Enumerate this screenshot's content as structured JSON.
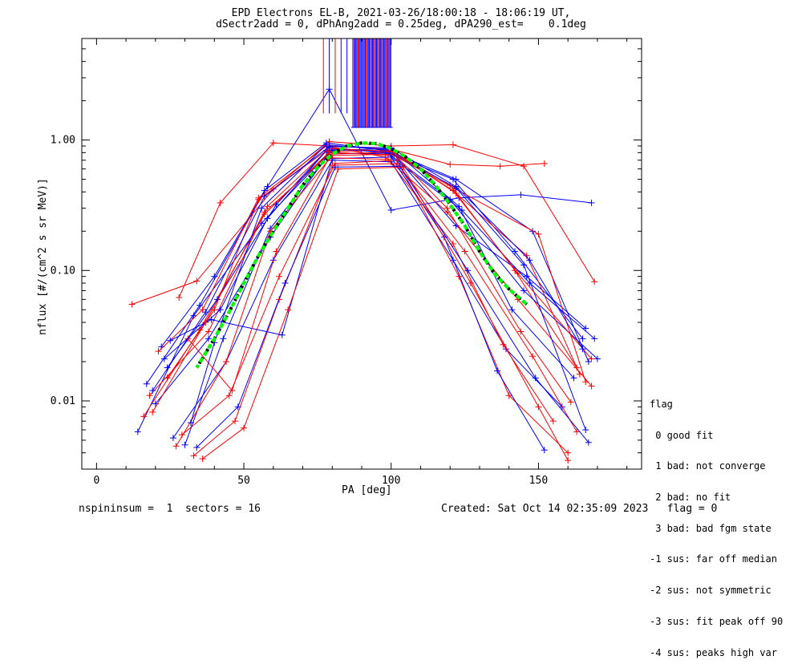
{
  "header": {
    "title_line1": "EPD Electrons EL-B, 2021-03-26/18:00:18 - 18:06:19 UT,",
    "title_line2": "dSectr2add = 0, dPhAng2add = 0.25deg, dPA290_est=    0.1deg"
  },
  "footer": {
    "left": "nspininsum =  1  sectors = 16",
    "right": "Created: Sat Oct 14 02:35:09 2023   flag = 0"
  },
  "legend": {
    "title": "flag",
    "items": [
      " 0 good fit",
      " 1 bad: not converge",
      " 2 bad: no fit",
      " 3 bad: bad fgm state",
      "-1 sus: far off median",
      "-2 sus: not symmetric",
      "-3 sus: fit peak off 90",
      "-4 sus: peaks high var"
    ]
  },
  "colors": {
    "series_blue": "#0000ff",
    "series_red": "#ff0000",
    "fit_green": "#00ff00",
    "fit_black": "#000000"
  },
  "chart_data": {
    "type": "line",
    "xlabel": "PA [deg]",
    "ylabel": "nflux [#/(cm^2 s sr MeV)]",
    "xlim": [
      -5,
      185
    ],
    "ylim": [
      0.003,
      6.0
    ],
    "ylog": true,
    "xticks": [
      0,
      50,
      100,
      150
    ],
    "yticks": [
      0.01,
      0.1,
      1.0
    ],
    "ytick_labels": [
      "0.01",
      "0.10",
      "1.00"
    ],
    "spike_region_x": [
      87,
      100
    ],
    "series": [
      {
        "color": "red",
        "x": [
          12,
          34,
          60,
          79,
          100,
          121,
          145,
          169
        ],
        "y": [
          0.055,
          0.083,
          0.42,
          0.97,
          0.9,
          0.92,
          0.63,
          0.082
        ]
      },
      {
        "color": "red",
        "x": [
          28,
          42,
          60,
          79,
          100,
          120,
          137,
          152
        ],
        "y": [
          0.062,
          0.33,
          0.95,
          0.9,
          0.85,
          0.65,
          0.63,
          0.66
        ]
      },
      {
        "color": "blue",
        "x": [
          17,
          35,
          58,
          79,
          100,
          123,
          144,
          168
        ],
        "y": [
          0.0135,
          0.054,
          0.44,
          2.45,
          0.29,
          0.36,
          0.38,
          0.33
        ]
      },
      {
        "color": "blue",
        "x": [
          22,
          40,
          57,
          78,
          100,
          122,
          146,
          166
        ],
        "y": [
          0.026,
          0.09,
          0.41,
          0.95,
          0.82,
          0.22,
          0.09,
          0.036
        ]
      },
      {
        "color": "blue",
        "x": [
          20,
          38,
          59,
          79,
          100,
          121,
          142,
          165
        ],
        "y": [
          0.0095,
          0.03,
          0.18,
          0.8,
          0.78,
          0.5,
          0.14,
          0.03
        ]
      },
      {
        "color": "red",
        "x": [
          19,
          37,
          58,
          78,
          100,
          120,
          142,
          163
        ],
        "y": [
          0.0082,
          0.04,
          0.31,
          0.82,
          0.83,
          0.45,
          0.1,
          0.018
        ]
      },
      {
        "color": "blue",
        "x": [
          14,
          33,
          56,
          80,
          100,
          122,
          148,
          167
        ],
        "y": [
          0.0058,
          0.045,
          0.23,
          0.85,
          0.81,
          0.5,
          0.2,
          0.02
        ]
      },
      {
        "color": "red",
        "x": [
          16,
          35,
          57,
          79,
          101,
          122,
          150,
          166
        ],
        "y": [
          0.0076,
          0.035,
          0.27,
          0.81,
          0.76,
          0.42,
          0.19,
          0.014
        ]
      },
      {
        "color": "blue",
        "x": [
          24,
          41,
          61,
          79,
          99,
          120,
          145,
          170
        ],
        "y": [
          0.018,
          0.06,
          0.32,
          0.88,
          0.79,
          0.35,
          0.07,
          0.021
        ]
      },
      {
        "color": "red",
        "x": [
          21,
          36,
          55,
          78,
          98,
          119,
          143,
          168
        ],
        "y": [
          0.024,
          0.05,
          0.36,
          0.9,
          0.74,
          0.28,
          0.06,
          0.013
        ]
      },
      {
        "color": "blue",
        "x": [
          26,
          44,
          60,
          80,
          100,
          121,
          139,
          158
        ],
        "y": [
          0.0052,
          0.02,
          0.12,
          0.7,
          0.68,
          0.12,
          0.025,
          0.009
        ]
      },
      {
        "color": "red",
        "x": [
          29,
          45,
          62,
          81,
          102,
          123,
          140,
          160
        ],
        "y": [
          0.0055,
          0.011,
          0.09,
          0.66,
          0.7,
          0.09,
          0.011,
          0.004
        ]
      },
      {
        "color": "blue",
        "x": [
          30,
          43,
          59,
          79,
          99,
          118,
          136,
          152
        ],
        "y": [
          0.0046,
          0.03,
          0.21,
          0.78,
          0.8,
          0.18,
          0.017,
          0.0042
        ]
      },
      {
        "color": "red",
        "x": [
          18,
          38,
          57,
          79,
          101,
          122,
          146,
          164
        ],
        "y": [
          0.011,
          0.034,
          0.28,
          0.78,
          0.81,
          0.39,
          0.13,
          0.016
        ]
      },
      {
        "color": "blue",
        "x": [
          25,
          39,
          63,
          80,
          100,
          124,
          147,
          169
        ],
        "y": [
          0.029,
          0.042,
          0.032,
          0.72,
          0.74,
          0.29,
          0.08,
          0.03
        ]
      },
      {
        "color": "red",
        "x": [
          31,
          46,
          61,
          79,
          99,
          121,
          138,
          155
        ],
        "y": [
          0.03,
          0.012,
          0.14,
          0.73,
          0.71,
          0.16,
          0.027,
          0.007
        ]
      },
      {
        "color": "blue",
        "x": [
          23,
          42,
          58,
          78,
          100,
          123,
          141,
          162
        ],
        "y": [
          0.021,
          0.05,
          0.25,
          0.83,
          0.86,
          0.31,
          0.05,
          0.015
        ]
      },
      {
        "color": "red",
        "x": [
          27,
          44,
          59,
          80,
          101,
          119,
          144,
          161
        ],
        "y": [
          0.0045,
          0.02,
          0.2,
          0.76,
          0.78,
          0.3,
          0.034,
          0.0098
        ]
      },
      {
        "color": "blue",
        "x": [
          32,
          40,
          56,
          78,
          98,
          122,
          145,
          166
        ],
        "y": [
          0.0068,
          0.028,
          0.3,
          0.92,
          0.84,
          0.43,
          0.11,
          0.006
        ]
      },
      {
        "color": "red",
        "x": [
          33,
          47,
          62,
          80,
          102,
          125,
          148,
          163
        ],
        "y": [
          0.0038,
          0.007,
          0.06,
          0.64,
          0.66,
          0.14,
          0.022,
          0.0058
        ]
      },
      {
        "color": "blue",
        "x": [
          34,
          48,
          64,
          81,
          103,
          126,
          149,
          167
        ],
        "y": [
          0.0044,
          0.009,
          0.08,
          0.62,
          0.63,
          0.1,
          0.015,
          0.0048
        ]
      },
      {
        "color": "red",
        "x": [
          24,
          40,
          55,
          79,
          100,
          121,
          143,
          168
        ],
        "y": [
          0.015,
          0.05,
          0.35,
          0.86,
          0.82,
          0.41,
          0.095,
          0.021
        ]
      },
      {
        "color": "blue",
        "x": [
          19,
          37,
          57,
          79,
          100,
          122,
          147,
          165
        ],
        "y": [
          0.012,
          0.048,
          0.37,
          0.89,
          0.87,
          0.44,
          0.12,
          0.025
        ]
      },
      {
        "color": "red",
        "x": [
          36,
          50,
          65,
          82,
          104,
          127,
          150,
          160
        ],
        "y": [
          0.0036,
          0.0062,
          0.05,
          0.6,
          0.62,
          0.08,
          0.009,
          0.0035
        ]
      }
    ],
    "fit_curve": {
      "x": [
        34,
        40,
        45,
        50,
        55,
        60,
        65,
        70,
        75,
        80,
        85,
        90,
        95,
        100,
        105,
        110,
        115,
        120,
        125,
        130,
        135,
        140,
        146
      ],
      "y": [
        0.018,
        0.03,
        0.048,
        0.08,
        0.13,
        0.2,
        0.3,
        0.45,
        0.62,
        0.78,
        0.9,
        0.95,
        0.94,
        0.86,
        0.74,
        0.6,
        0.45,
        0.32,
        0.22,
        0.14,
        0.095,
        0.072,
        0.055
      ]
    }
  }
}
